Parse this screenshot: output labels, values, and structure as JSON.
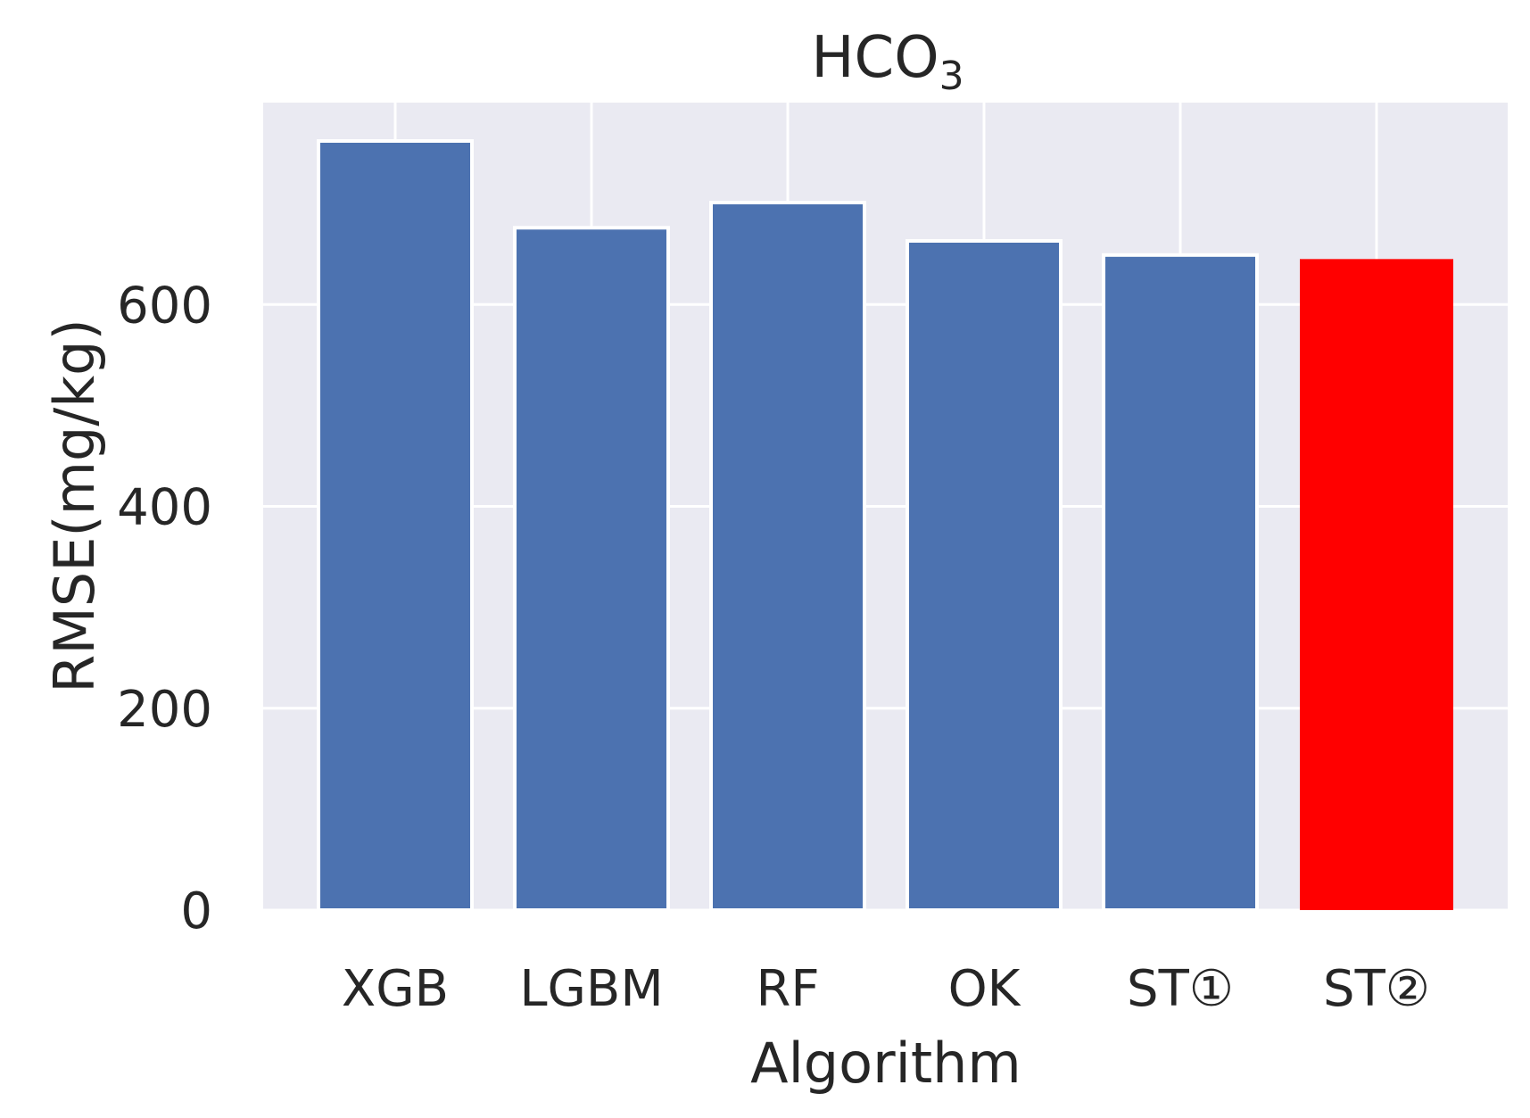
{
  "chart_data": {
    "type": "bar",
    "title": "HCO",
    "title_subscript": "3",
    "xlabel": "Algorithm",
    "ylabel": "RMSE(mg/kg)",
    "categories": [
      "XGB",
      "LGBM",
      "RF",
      "OK",
      "ST①",
      "ST②"
    ],
    "values": [
      762,
      676,
      701,
      663,
      649,
      645
    ],
    "bar_colors": [
      "#4c72b0",
      "#4c72b0",
      "#4c72b0",
      "#4c72b0",
      "#4c72b0",
      "#ff0000"
    ],
    "ylim": [
      0,
      800
    ],
    "yticks": [
      0,
      200,
      400,
      600
    ],
    "grid": true,
    "background": "#eaeaf2",
    "gridline_color": "#ffffff",
    "legend": null
  }
}
